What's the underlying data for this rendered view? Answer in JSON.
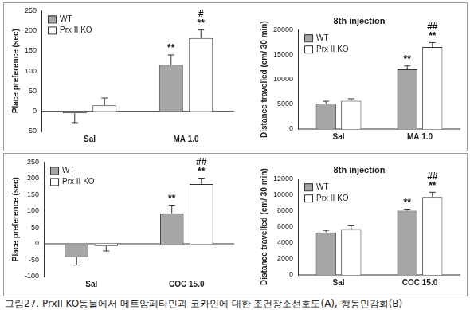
{
  "caption": "그림27. PrxII KO동물에서 메트암페타민과 코카인에 대한 조건장소선호도(A), 행동민감화(B)",
  "chart_data": [
    {
      "type": "bar",
      "y_label": "Place preference (sec)",
      "categories": [
        "Sal",
        "MA 1.0"
      ],
      "series": [
        {
          "name": "WT",
          "color": "#a6a6a6",
          "values": [
            -5,
            115
          ],
          "errors": [
            23,
            25
          ]
        },
        {
          "name": "Prx II KO",
          "color": "#ffffff",
          "values": [
            15,
            182
          ],
          "errors": [
            18,
            20
          ]
        }
      ],
      "ylim": [
        -50,
        250
      ],
      "yticks": [
        -50,
        0,
        50,
        100,
        150,
        200,
        250
      ],
      "grid": false,
      "legend": "top-left",
      "annotations": [
        {
          "series": "WT",
          "category": "MA 1.0",
          "text": "**"
        },
        {
          "series": "Prx II KO",
          "category": "MA 1.0",
          "text": "**"
        },
        {
          "series": "Prx II KO",
          "category": "MA 1.0",
          "text": "#"
        }
      ]
    },
    {
      "type": "bar",
      "title": "8th injection",
      "y_label": "Distance travelled (cm/ 30 min)",
      "categories": [
        "Sal",
        "MA 1.0"
      ],
      "series": [
        {
          "name": "WT",
          "color": "#a6a6a6",
          "values": [
            5100,
            12000
          ],
          "errors": [
            500,
            700
          ]
        },
        {
          "name": "Prx II KO",
          "color": "#ffffff",
          "values": [
            5700,
            16500
          ],
          "errors": [
            400,
            900
          ]
        }
      ],
      "ylim": [
        0,
        20000
      ],
      "yticks": [
        0,
        5000,
        10000,
        15000,
        20000
      ],
      "grid": false,
      "legend": "top-left",
      "annotations": [
        {
          "series": "WT",
          "category": "MA 1.0",
          "text": "**"
        },
        {
          "series": "Prx II KO",
          "category": "MA 1.0",
          "text": "**"
        },
        {
          "series": "Prx II KO",
          "category": "MA 1.0",
          "text": "##"
        }
      ]
    },
    {
      "type": "bar",
      "y_label": "Place preference (sec)",
      "categories": [
        "Sal",
        "COC 15.0"
      ],
      "series": [
        {
          "name": "WT",
          "color": "#a6a6a6",
          "values": [
            -40,
            93
          ],
          "errors": [
            25,
            25
          ]
        },
        {
          "name": "Prx II KO",
          "color": "#ffffff",
          "values": [
            -7,
            183
          ],
          "errors": [
            15,
            18
          ]
        }
      ],
      "ylim": [
        -100,
        250
      ],
      "yticks": [
        -100,
        -50,
        0,
        50,
        100,
        150,
        200,
        250
      ],
      "grid": false,
      "legend": "top-left",
      "annotations": [
        {
          "series": "WT",
          "category": "COC 15.0",
          "text": "**"
        },
        {
          "series": "Prx II KO",
          "category": "COC 15.0",
          "text": "**"
        },
        {
          "series": "Prx II KO",
          "category": "COC 15.0",
          "text": "##"
        }
      ]
    },
    {
      "type": "bar",
      "title": "8th injection",
      "y_label": "Distance travelled (cm/ 30 min)",
      "categories": [
        "Sal",
        "COC 15.0"
      ],
      "series": [
        {
          "name": "WT",
          "color": "#a6a6a6",
          "values": [
            5300,
            8000
          ],
          "errors": [
            250,
            200
          ]
        },
        {
          "name": "Prx II KO",
          "color": "#ffffff",
          "values": [
            5700,
            9700
          ],
          "errors": [
            500,
            600
          ]
        }
      ],
      "ylim": [
        0,
        12000
      ],
      "yticks": [
        0,
        2000,
        4000,
        6000,
        8000,
        10000,
        12000
      ],
      "grid": false,
      "legend": "top-left",
      "annotations": [
        {
          "series": "WT",
          "category": "COC 15.0",
          "text": "**"
        },
        {
          "series": "Prx II KO",
          "category": "COC 15.0",
          "text": "**"
        },
        {
          "series": "Prx II KO",
          "category": "COC 15.0",
          "text": "##"
        }
      ]
    }
  ]
}
